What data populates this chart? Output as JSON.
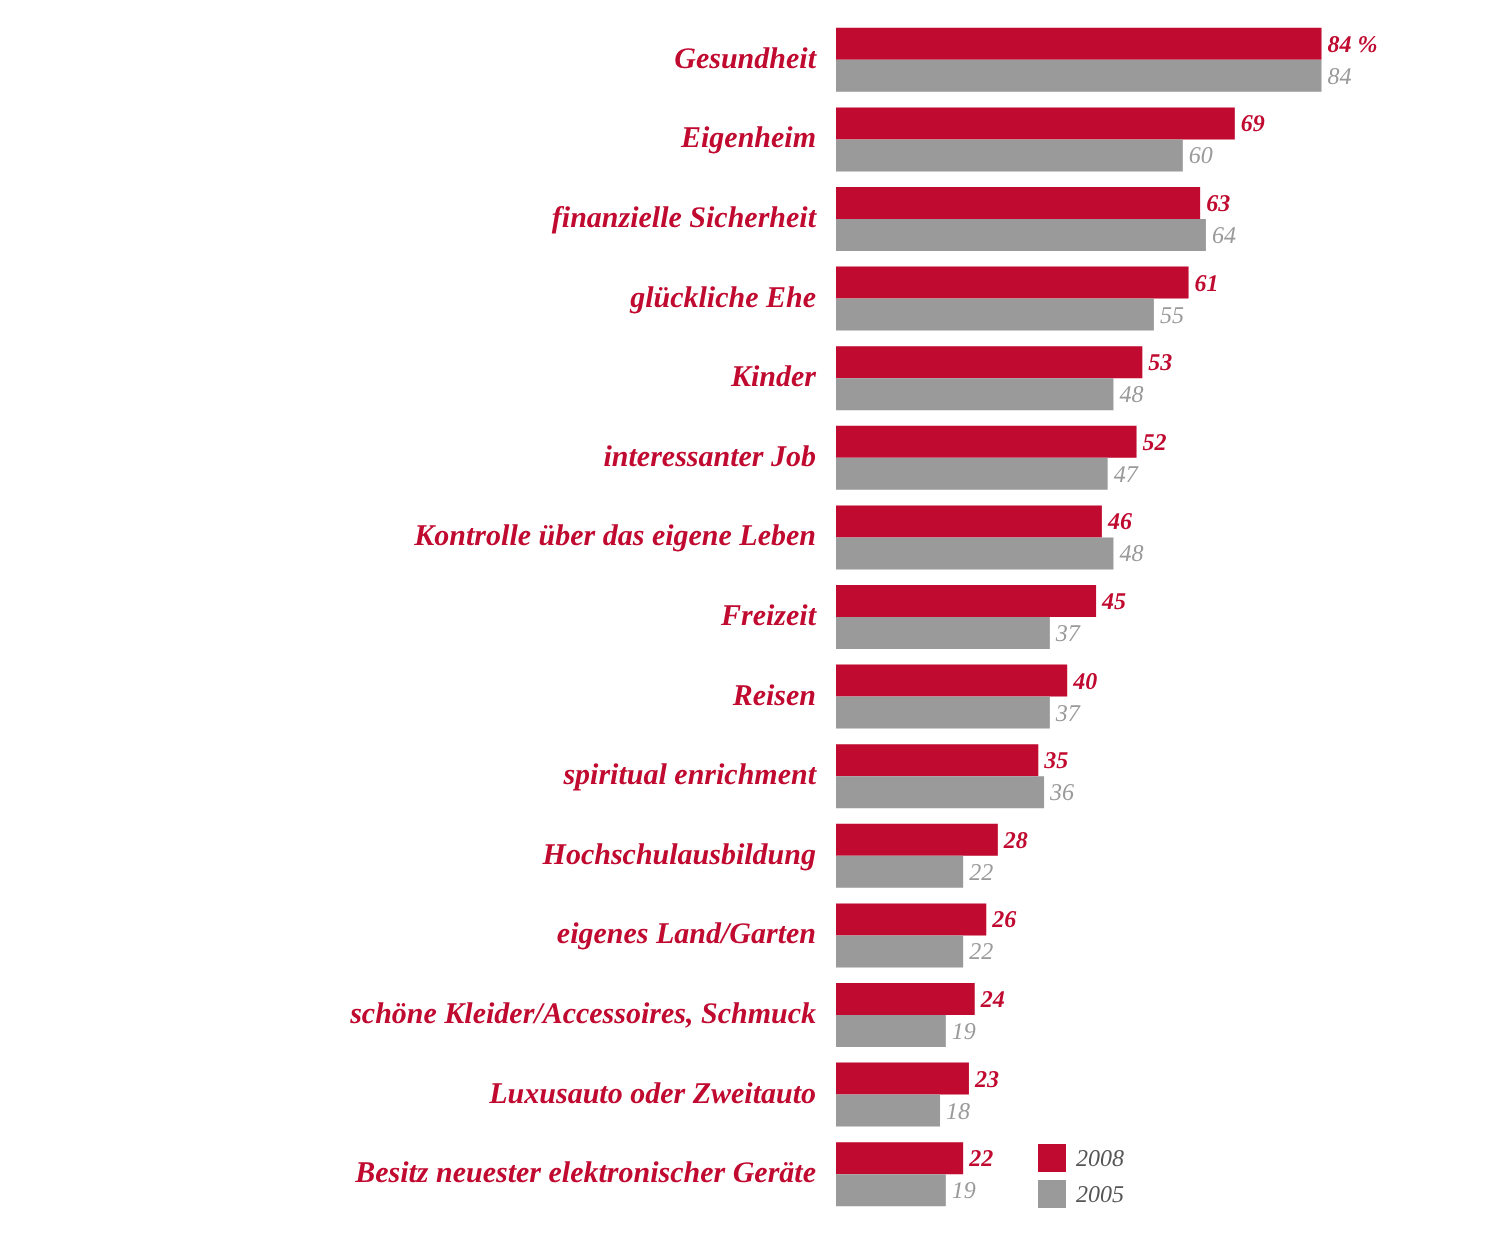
{
  "chart_data": {
    "type": "bar",
    "orientation": "horizontal",
    "categories": [
      "Gesundheit",
      "Eigenheim",
      "finanzielle Sicherheit",
      "glückliche Ehe",
      "Kinder",
      "interessanter Job",
      "Kontrolle über das eigene Leben",
      "Freizeit",
      "Reisen",
      "spiritual enrichment",
      "Hochschulausbildung",
      "eigenes Land/Garten",
      "schöne Kleider/Accessoires, Schmuck",
      "Luxusauto oder Zweitauto",
      "Besitz neuester elektronischer Geräte"
    ],
    "series": [
      {
        "name": "2008",
        "color": "#c00a30",
        "values": [
          84,
          69,
          63,
          61,
          53,
          52,
          46,
          45,
          40,
          35,
          28,
          26,
          24,
          23,
          22
        ],
        "value_labels": [
          "84 %",
          "69",
          "63",
          "61",
          "53",
          "52",
          "46",
          "45",
          "40",
          "35",
          "28",
          "26",
          "24",
          "23",
          "22"
        ]
      },
      {
        "name": "2005",
        "color": "#9a9a9a",
        "values": [
          84,
          60,
          64,
          55,
          48,
          47,
          48,
          37,
          37,
          36,
          22,
          22,
          19,
          18,
          19
        ],
        "value_labels": [
          "84",
          "60",
          "64",
          "55",
          "48",
          "47",
          "48",
          "37",
          "37",
          "36",
          "22",
          "22",
          "19",
          "18",
          "19"
        ]
      }
    ],
    "legend": "bottom right"
  }
}
